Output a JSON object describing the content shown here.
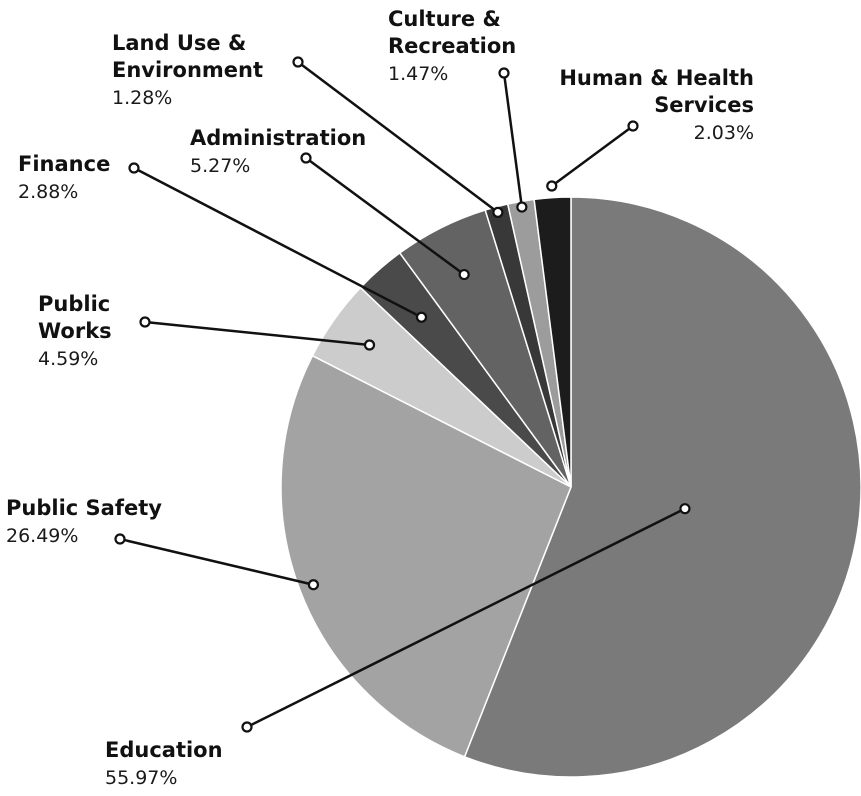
{
  "chart_data": {
    "type": "pie",
    "start_angle_deg": 0,
    "direction": "clockwise",
    "slices": [
      {
        "key": "education",
        "name_lines": [
          "Education"
        ],
        "value": 55.97,
        "display": "55.97%",
        "color": "#7a7a7a"
      },
      {
        "key": "public-safety",
        "name_lines": [
          "Public Safety"
        ],
        "value": 26.49,
        "display": "26.49%",
        "color": "#a3a3a3"
      },
      {
        "key": "public-works",
        "name_lines": [
          "Public",
          "Works"
        ],
        "value": 4.59,
        "display": "4.59%",
        "color": "#cccccc"
      },
      {
        "key": "finance",
        "name_lines": [
          "Finance"
        ],
        "value": 2.88,
        "display": "2.88%",
        "color": "#4a4a4a"
      },
      {
        "key": "administration",
        "name_lines": [
          "Administration"
        ],
        "value": 5.27,
        "display": "5.27%",
        "color": "#636363"
      },
      {
        "key": "land-use-environment",
        "name_lines": [
          "Land Use &",
          "Environment"
        ],
        "value": 1.28,
        "display": "1.28%",
        "color": "#383838"
      },
      {
        "key": "culture-recreation",
        "name_lines": [
          "Culture &",
          "Recreation"
        ],
        "value": 1.47,
        "display": "1.47%",
        "color": "#9c9c9c"
      },
      {
        "key": "human-health-services",
        "name_lines": [
          "Human & Health",
          "Services"
        ],
        "value": 2.03,
        "display": "2.03%",
        "color": "#1c1c1c"
      }
    ]
  }
}
